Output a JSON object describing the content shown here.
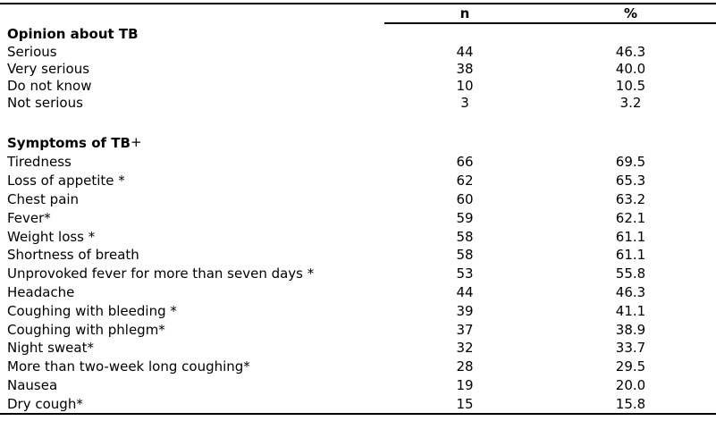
{
  "colors": {
    "text": "#000000",
    "background": "#ffffff",
    "rule": "#000000"
  },
  "table": {
    "columns": [
      "n",
      "%"
    ],
    "sections": [
      {
        "heading": "Opinion about TB",
        "heading_suffix": "",
        "rows": [
          {
            "label": "Serious",
            "n": "44",
            "pct": "46.3"
          },
          {
            "label": "Very serious",
            "n": "38",
            "pct": "40.0"
          },
          {
            "label": "Do not know",
            "n": "10",
            "pct": "10.5"
          },
          {
            "label": "Not serious",
            "n": "3",
            "pct": "3.2"
          }
        ]
      },
      {
        "heading": "Symptoms of TB",
        "heading_suffix": "+",
        "rows": [
          {
            "label": "Tiredness",
            "n": "66",
            "pct": "69.5"
          },
          {
            "label": "Loss of appetite *",
            "n": "62",
            "pct": "65.3"
          },
          {
            "label": "Chest pain",
            "n": "60",
            "pct": "63.2"
          },
          {
            "label": "Fever*",
            "n": "59",
            "pct": "62.1"
          },
          {
            "label": "Weight loss *",
            "n": "58",
            "pct": "61.1"
          },
          {
            "label": "Shortness of breath",
            "n": "58",
            "pct": "61.1"
          },
          {
            "label": "Unprovoked fever for more than seven days *",
            "n": "53",
            "pct": "55.8"
          },
          {
            "label": "Headache",
            "n": "44",
            "pct": "46.3"
          },
          {
            "label": "Coughing with bleeding *",
            "n": "39",
            "pct": "41.1"
          },
          {
            "label": "Coughing with phlegm*",
            "n": "37",
            "pct": "38.9"
          },
          {
            "label": "Night sweat*",
            "n": "32",
            "pct": "33.7"
          },
          {
            "label": "More than two-week long coughing*",
            "n": "28",
            "pct": "29.5"
          },
          {
            "label": "Nausea",
            "n": "19",
            "pct": "20.0"
          },
          {
            "label": "Dry cough*",
            "n": "15",
            "pct": "15.8"
          }
        ]
      }
    ]
  }
}
